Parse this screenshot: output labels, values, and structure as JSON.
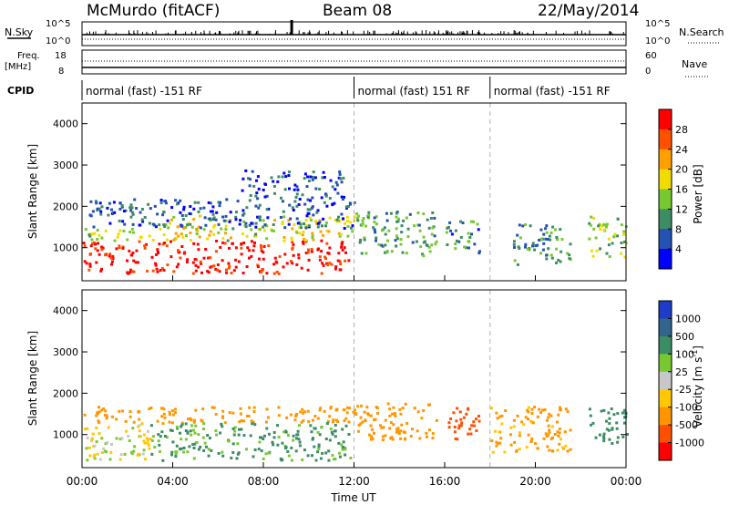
{
  "header": {
    "station": "McMurdo (fitACF)",
    "beam": "Beam 08",
    "date": "22/May/2014"
  },
  "scales": {
    "nsky_label": "N.Sky",
    "nsky_ticks": [
      "10^5",
      "10^0"
    ],
    "nsearch_label": "N.Search",
    "nsearch_ticks": [
      "10^5",
      "10^0"
    ],
    "freq_label_line1": "Freq.",
    "freq_label_line2": "[MHz]",
    "freq_ticks": [
      "18",
      "8"
    ],
    "nave_label": "Nave",
    "nave_ticks": [
      "60",
      "0"
    ],
    "cpid_label": "CPID"
  },
  "cpid_segments": [
    {
      "start_hour": 0,
      "end_hour": 12,
      "label": "normal (fast) -151 RF"
    },
    {
      "start_hour": 12,
      "end_hour": 18,
      "label": "normal (fast) 151 RF"
    },
    {
      "start_hour": 18,
      "end_hour": 24,
      "label": "normal (fast) -151 RF"
    }
  ],
  "axes": {
    "ylabel": "Slant Range [km]",
    "yticks": [
      "1000",
      "2000",
      "3000",
      "4000"
    ],
    "xlabel": "Time UT",
    "xticks": [
      "00:00",
      "04:00",
      "08:00",
      "12:00",
      "16:00",
      "20:00",
      "00:00"
    ]
  },
  "power_colorbar": {
    "label": "Power [dB]",
    "ticks": [
      "4",
      "8",
      "12",
      "16",
      "20",
      "24",
      "28"
    ],
    "colors": [
      "#0000ff",
      "#2352b4",
      "#3c8c64",
      "#78c832",
      "#f0dc00",
      "#ffa000",
      "#ff5000",
      "#ff0000"
    ]
  },
  "velocity_colorbar": {
    "label": "Velocity [m s",
    "label_sup": "-1",
    "label_end": "]",
    "ticks": [
      "1000",
      "500",
      "100",
      "25",
      "-25",
      "-100",
      "-500",
      "-1000"
    ],
    "colors": [
      "#1e3cc8",
      "#32648c",
      "#3c8c64",
      "#78c832",
      "#c8c8c8",
      "#ffc800",
      "#ff9600",
      "#ff5000",
      "#ff0000"
    ]
  },
  "chart_data": [
    {
      "type": "heatmap",
      "title": "McMurdo (fitACF)",
      "panel": "power",
      "xlabel": "Time UT",
      "ylabel": "Slant Range [km]",
      "xlim_hours": [
        0,
        24
      ],
      "ylim_km": [
        200,
        4500
      ],
      "colorbar": "Power [dB]",
      "colorbar_range": [
        0,
        30
      ],
      "regions": [
        {
          "t0": 0.0,
          "t1": 11.8,
          "r0": 400,
          "r1": 1200,
          "value": 28
        },
        {
          "t0": 0.0,
          "t1": 3.5,
          "r0": 1200,
          "r1": 1500,
          "value": 14
        },
        {
          "t0": 3.5,
          "t1": 12.0,
          "r0": 1200,
          "r1": 1800,
          "value": 16
        },
        {
          "t0": 0.3,
          "t1": 12.0,
          "r0": 1500,
          "r1": 2200,
          "value": 6
        },
        {
          "t0": 7.0,
          "t1": 11.5,
          "r0": 2200,
          "r1": 2900,
          "value": 5
        },
        {
          "t0": 12.0,
          "t1": 15.6,
          "r0": 800,
          "r1": 1900,
          "value": 10
        },
        {
          "t0": 16.0,
          "t1": 17.5,
          "r0": 900,
          "r1": 1700,
          "value": 8
        },
        {
          "t0": 19.0,
          "t1": 21.5,
          "r0": 600,
          "r1": 1600,
          "value": 9
        },
        {
          "t0": 22.3,
          "t1": 24.0,
          "r0": 800,
          "r1": 1800,
          "value": 14
        }
      ]
    },
    {
      "type": "heatmap",
      "panel": "velocity",
      "xlabel": "Time UT",
      "ylabel": "Slant Range [km]",
      "xlim_hours": [
        0,
        24
      ],
      "ylim_km": [
        200,
        4500
      ],
      "colorbar": "Velocity [m s-1]",
      "colorbar_range": [
        -1000,
        1000
      ],
      "regions": [
        {
          "t0": 0.0,
          "t1": 3.0,
          "r0": 400,
          "r1": 1300,
          "value": 0
        },
        {
          "t0": 0.0,
          "t1": 12.0,
          "r0": 1300,
          "r1": 1700,
          "value": -200
        },
        {
          "t0": 3.0,
          "t1": 11.8,
          "r0": 400,
          "r1": 1300,
          "value": 150
        },
        {
          "t0": 12.0,
          "t1": 15.6,
          "r0": 900,
          "r1": 1800,
          "value": -200
        },
        {
          "t0": 16.0,
          "t1": 17.5,
          "r0": 900,
          "r1": 1700,
          "value": -600
        },
        {
          "t0": 18.0,
          "t1": 21.5,
          "r0": 600,
          "r1": 1700,
          "value": -150
        },
        {
          "t0": 22.3,
          "t1": 24.0,
          "r0": 800,
          "r1": 1700,
          "value": 200
        }
      ]
    }
  ]
}
